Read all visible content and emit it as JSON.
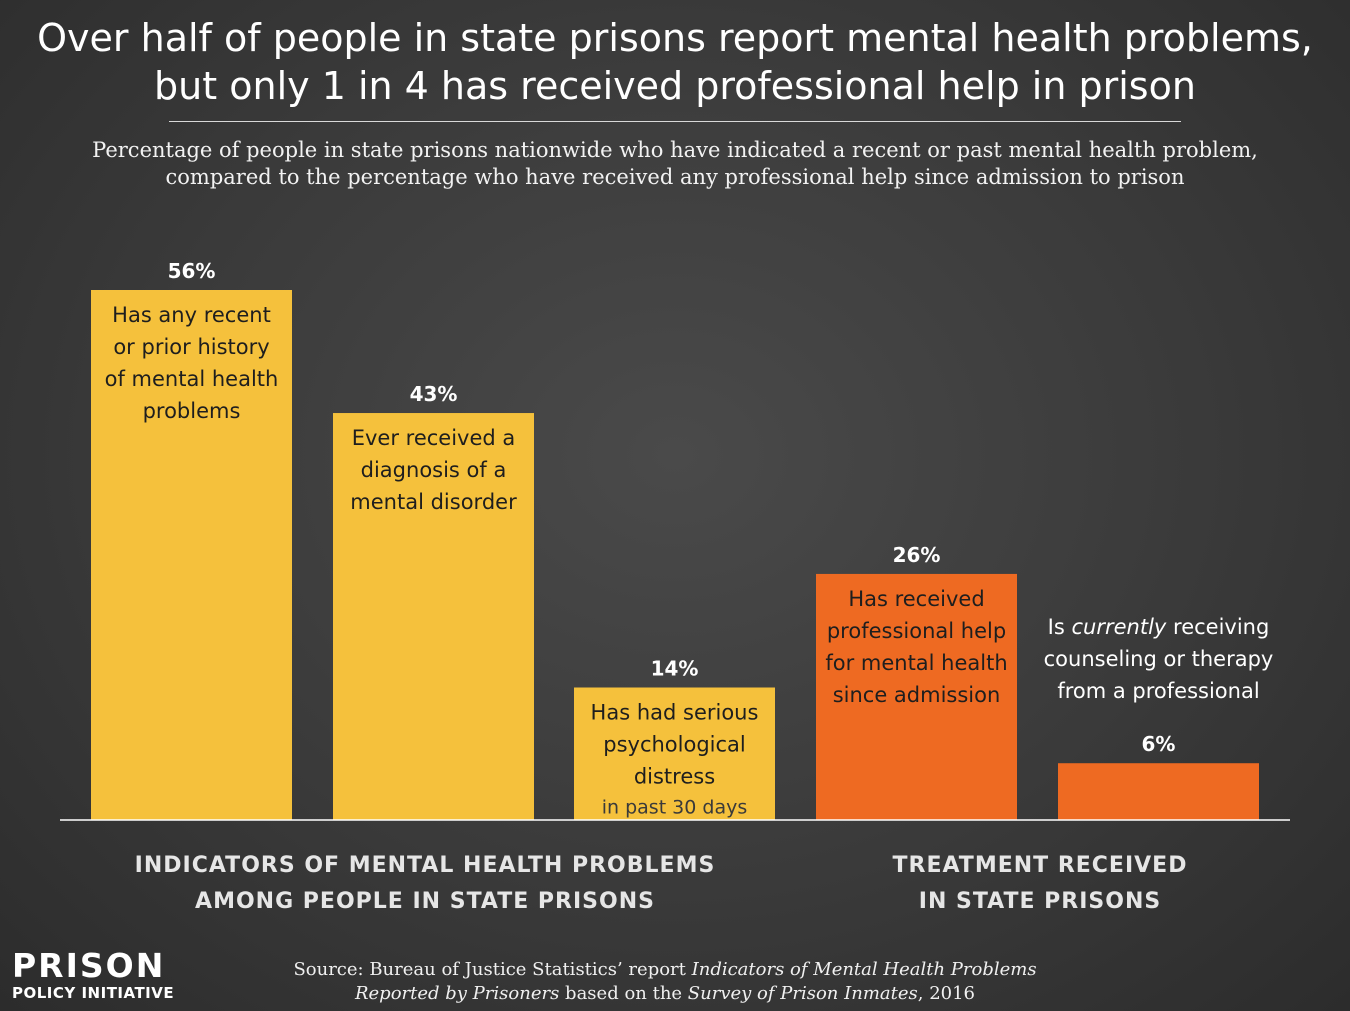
{
  "title": {
    "line1": "Over half of people in state prisons report mental health problems,",
    "line2": "but only 1 in 4 has received professional help in prison"
  },
  "subtitle": {
    "line1": "Percentage of people in state prisons nationwide who have indicated a recent or past mental health problem,",
    "line2": "compared to the percentage who have received any professional help since admission to prison"
  },
  "colors": {
    "indicator": "#f5c13c",
    "treatment": "#ee6a22",
    "background": "#3d3d3d",
    "baseline": "#ffffff"
  },
  "chart_data": {
    "type": "bar",
    "categories": [
      "Has any recent or prior history of mental health problems",
      "Ever received a diagnosis of a mental disorder",
      "Has had serious psychological distress in past 30 days",
      "Has received professional help for mental health since admission",
      "Is currently receiving counseling or therapy from a professional"
    ],
    "values": [
      56,
      43,
      14,
      26,
      6
    ],
    "value_labels": [
      "56%",
      "43%",
      "14%",
      "26%",
      "6%"
    ],
    "groups": [
      "indicator",
      "indicator",
      "indicator",
      "treatment",
      "treatment"
    ],
    "bar_text": [
      [
        "Has any recent",
        "or prior history",
        "of mental health",
        "problems"
      ],
      [
        "Ever received a",
        "diagnosis of a",
        "mental disorder"
      ],
      [
        "Has had serious",
        "psychological",
        "distress"
      ],
      [
        "Has received",
        "professional help",
        "for mental health",
        "since admission"
      ],
      []
    ],
    "bar_subtext": [
      "",
      "",
      "in past 30 days",
      "",
      ""
    ],
    "outside_text": {
      "line1_pre": "Is ",
      "line1_em": "currently",
      "line1_post": " receiving",
      "line2": "counseling or therapy",
      "line3": "from a professional"
    },
    "ylim": [
      0,
      56
    ],
    "grid": false,
    "legend": "none"
  },
  "group_labels": {
    "indicators_line1": "INDICATORS OF MENTAL HEALTH PROBLEMS",
    "indicators_line2": "AMONG PEOPLE IN STATE PRISONS",
    "treatment_line1": "TREATMENT RECEIVED",
    "treatment_line2": "IN STATE PRISONS"
  },
  "logo": {
    "main": "PRISON",
    "sub": "POLICY INITIATIVE"
  },
  "source": {
    "prefix": "Source: Bureau of Justice Statistics’ report ",
    "report": "Indicators of Mental Health Problems",
    "report2": "Reported by Prisoners",
    "middle": " based on the ",
    "survey": "Survey of Prison Inmates",
    "suffix": ", 2016"
  }
}
